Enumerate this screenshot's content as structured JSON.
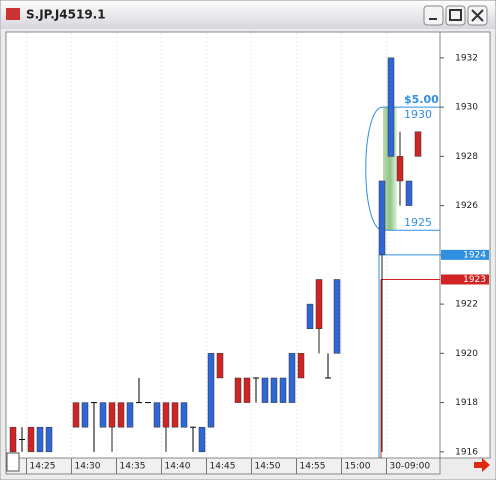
{
  "window": {
    "title": "S.JP.J4519.1"
  },
  "chart_data": {
    "type": "candlestick",
    "categories": [
      null,
      null,
      "14:25",
      null,
      null,
      null,
      null,
      "14:30",
      null,
      null,
      null,
      null,
      "14:35",
      null,
      null,
      null,
      null,
      "14:40",
      null,
      null,
      null,
      null,
      "14:45",
      null,
      null,
      null,
      null,
      "14:50",
      null,
      null,
      null,
      null,
      "14:55",
      null,
      null,
      null,
      null,
      "15:00",
      null,
      null,
      null,
      null,
      "30-09:00",
      null,
      null,
      null
    ],
    "open": [
      1917,
      1916.5,
      1917,
      1916,
      1916,
      null,
      null,
      1918,
      1917,
      1918,
      1917,
      1918,
      1918,
      1917,
      1918,
      1918,
      1917,
      1918,
      1918,
      1917,
      1917,
      1916,
      1917,
      1920,
      null,
      1919,
      1919,
      1919,
      1918,
      1918,
      1918,
      1918,
      1920,
      1921,
      1923,
      1919,
      1920,
      null,
      null,
      null,
      null,
      1924,
      1928,
      1928,
      1926,
      1929
    ],
    "high": [
      1917,
      1917,
      1917,
      1917,
      1917,
      null,
      null,
      1918,
      1918,
      1918,
      1918,
      1918,
      1918,
      1918,
      1919,
      1918,
      1918,
      1918,
      1918,
      1918,
      1917,
      1917,
      1920,
      1920,
      null,
      1919,
      1919,
      1919,
      1919,
      1919,
      1919,
      1920,
      1920,
      1922,
      1923,
      1920,
      1923,
      null,
      null,
      null,
      null,
      1927,
      1932,
      1929,
      1927,
      1929
    ],
    "low": [
      1916,
      1916,
      1916,
      1916,
      1916,
      null,
      null,
      1917,
      1917,
      1916,
      1917,
      1916,
      1917,
      1917,
      1918,
      1918,
      1917,
      1916,
      1917,
      1917,
      1916,
      1916,
      1917,
      1919,
      null,
      1918,
      1918,
      1918,
      1918,
      1918,
      1918,
      1918,
      1919,
      1921,
      1920,
      1919,
      1920,
      null,
      null,
      null,
      null,
      1916,
      1928,
      1926,
      1926,
      1928
    ],
    "close": [
      1916,
      1916.5,
      1916,
      1917,
      1917,
      null,
      null,
      1917,
      1918,
      1918,
      1918,
      1917,
      1917,
      1918,
      1918,
      1918,
      1918,
      1917,
      1917,
      1918,
      1917,
      1917,
      1920,
      1919,
      null,
      1918,
      1918,
      1919,
      1919,
      1919,
      1919,
      1920,
      1919,
      1922,
      1921,
      1919,
      1923,
      null,
      null,
      null,
      null,
      1927,
      1932,
      1927,
      1927,
      1928
    ],
    "up_color": "#2f66d8",
    "down_color": "#d02424",
    "doji_color": "#000000",
    "ylim": [
      1915.75,
      1933.05
    ],
    "yticks": [
      1916,
      1918,
      1920,
      1922,
      1924,
      1926,
      1928,
      1930,
      1932
    ],
    "grid": true,
    "price_tags": [
      {
        "value": 1924,
        "color": "#2f8fe0"
      },
      {
        "value": 1923,
        "color": "#d02424"
      }
    ],
    "range": {
      "high": 1930,
      "low": 1925,
      "label": "$5.00",
      "color": "#2f8fe0"
    }
  }
}
